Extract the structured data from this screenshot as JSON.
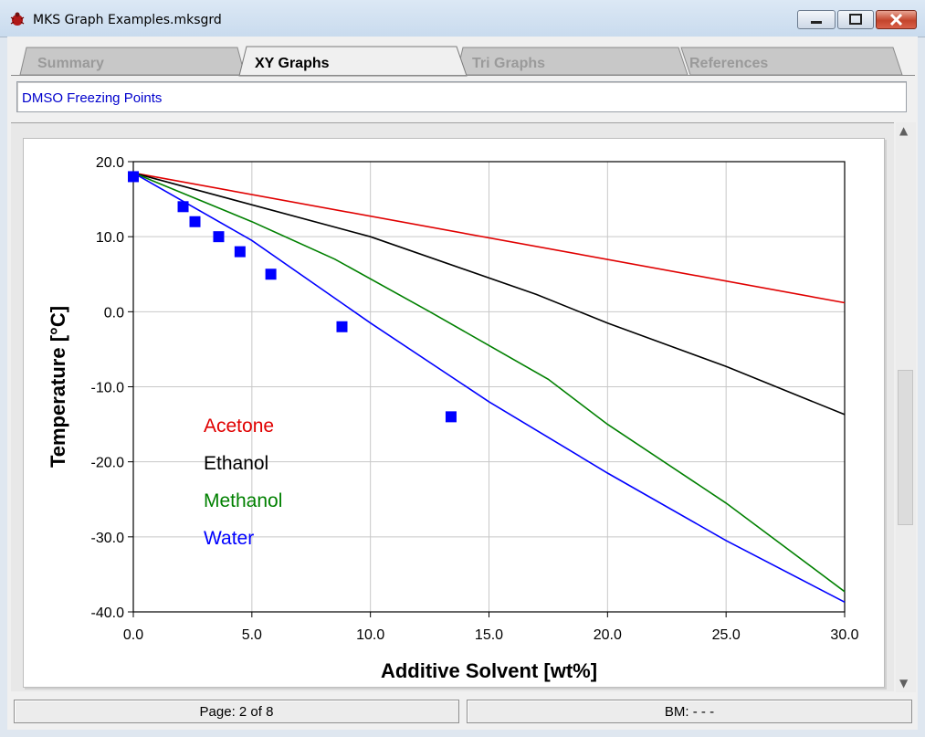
{
  "window": {
    "title": "MKS Graph Examples.mksgrd",
    "controls": {
      "minimize": "minimize",
      "maximize": "maximize",
      "close": "close"
    }
  },
  "tabs": [
    {
      "label": "Summary",
      "active": false
    },
    {
      "label": "XY Graphs",
      "active": true
    },
    {
      "label": "Tri Graphs",
      "active": false
    },
    {
      "label": "References",
      "active": false
    }
  ],
  "graph_title": "DMSO Freezing Points",
  "status": {
    "page": "Page: 2 of 8",
    "bookmark": "BM: - - -"
  },
  "chart_data": {
    "type": "line",
    "title": "",
    "xlabel": "Additive Solvent [wt%]",
    "ylabel": "Temperature [°C]",
    "xlim": [
      0,
      30
    ],
    "ylim": [
      -40,
      20
    ],
    "xticks": [
      "0.0",
      "5.0",
      "10.0",
      "15.0",
      "20.0",
      "25.0",
      "30.0"
    ],
    "yticks": [
      "20.0",
      "10.0",
      "0.0",
      "-10.0",
      "-20.0",
      "-30.0",
      "-40.0"
    ],
    "grid": true,
    "legend": "inside, lower-left",
    "series": [
      {
        "name": "Acetone",
        "color": "#e00000",
        "kind": "line",
        "x": [
          0,
          30
        ],
        "y": [
          18.5,
          1.2
        ]
      },
      {
        "name": "Ethanol",
        "color": "#000000",
        "kind": "line",
        "x": [
          0,
          10,
          17,
          20,
          25,
          30
        ],
        "y": [
          18.5,
          10,
          2.3,
          -1.5,
          -7.3,
          -13.7
        ]
      },
      {
        "name": "Methanol",
        "color": "#008000",
        "kind": "line",
        "x": [
          0,
          5,
          8.5,
          12.5,
          17.5,
          20,
          25,
          30
        ],
        "y": [
          18.5,
          12,
          7,
          0,
          -9,
          -15,
          -25.5,
          -37.3
        ]
      },
      {
        "name": "Water",
        "color": "#0000ff",
        "kind": "line",
        "x": [
          0,
          5,
          10,
          15,
          20,
          25,
          30
        ],
        "y": [
          18.5,
          9.5,
          -1.5,
          -12,
          -21.5,
          -30.5,
          -38.7
        ]
      }
    ],
    "points": {
      "color": "#0000ff",
      "x": [
        0,
        2.1,
        2.6,
        3.6,
        4.5,
        5.8,
        8.8,
        13.4
      ],
      "y": [
        18,
        14,
        12,
        10,
        8,
        5,
        -2,
        -14
      ]
    }
  }
}
